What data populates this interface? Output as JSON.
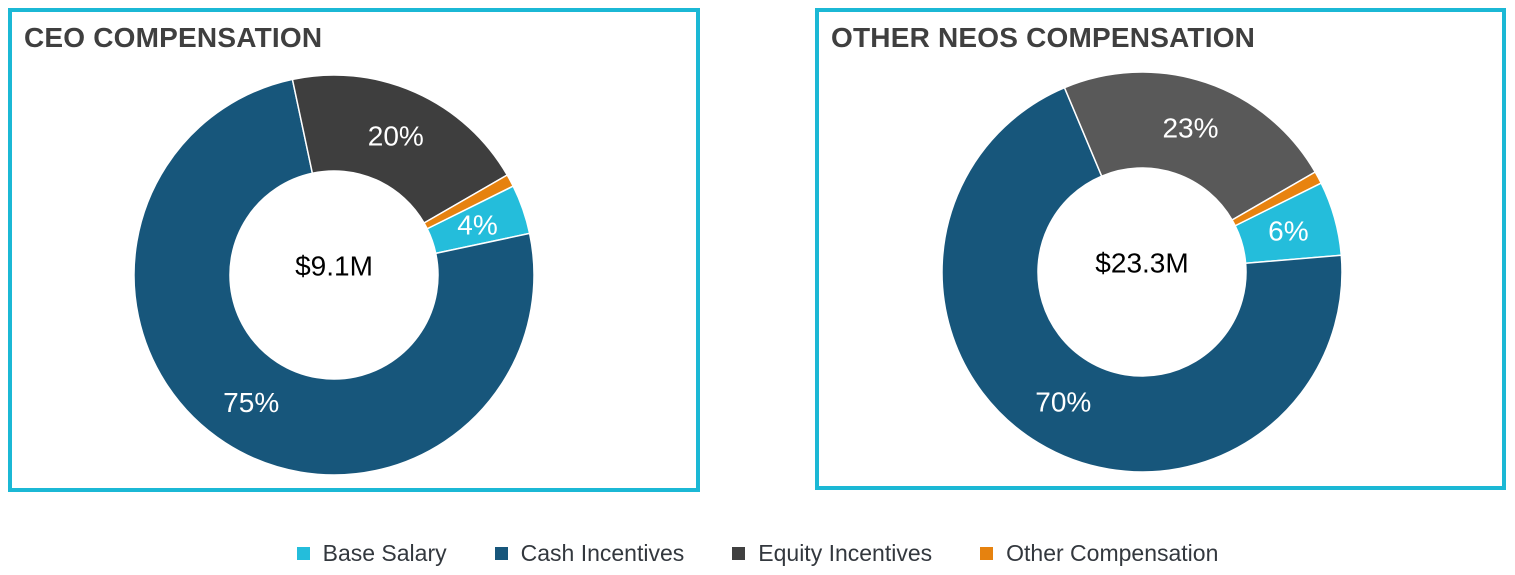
{
  "panel_border_color": "#1BB8D5",
  "title_color": "#3F3F3F",
  "chart_data": [
    {
      "type": "donut",
      "title": "CEO COMPENSATION",
      "center_label": "$9.1M",
      "categories": [
        "Base Salary",
        "Cash Incentives",
        "Equity Incentives",
        "Other Compensation"
      ],
      "values": [
        4,
        75,
        20,
        1
      ],
      "data_labels": [
        "4%",
        "75%",
        "20%",
        ""
      ],
      "colors": [
        "#24BDDB",
        "#17567B",
        "#3E3E3E",
        "#E6820F"
      ],
      "start_angle_deg": 63.6,
      "hole_ratio": 0.52,
      "legend_position": "bottom-shared"
    },
    {
      "type": "donut",
      "title": "OTHER NEOS COMPENSATION",
      "center_label": "$23.3M",
      "categories": [
        "Base Salary",
        "Cash Incentives",
        "Equity Incentives",
        "Other Compensation"
      ],
      "values": [
        6,
        70,
        23,
        1
      ],
      "data_labels": [
        "6%",
        "70%",
        "23%",
        ""
      ],
      "colors": [
        "#24BDDB",
        "#17567B",
        "#595959",
        "#E8830F"
      ],
      "start_angle_deg": 63.6,
      "hole_ratio": 0.52,
      "legend_position": "bottom-shared"
    }
  ],
  "legend": {
    "items": [
      {
        "label": "Base Salary",
        "color": "#24BDDB"
      },
      {
        "label": "Cash Incentives",
        "color": "#17567B"
      },
      {
        "label": "Equity Incentives",
        "color": "#404040"
      },
      {
        "label": "Other Compensation",
        "color": "#E6820F"
      }
    ]
  }
}
